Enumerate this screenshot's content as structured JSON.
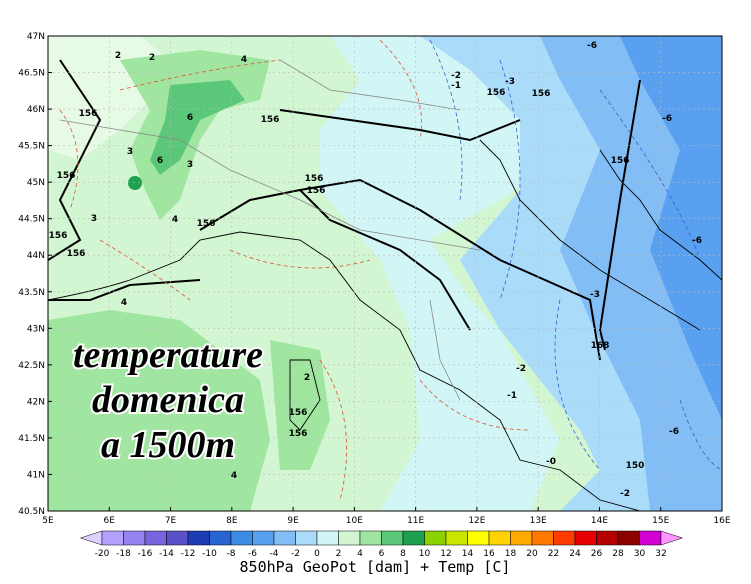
{
  "map": {
    "lat_labels": [
      "47N",
      "46.5N",
      "46N",
      "45.5N",
      "45N",
      "44.5N",
      "44N",
      "43.5N",
      "43N",
      "42.5N",
      "42N",
      "41.5N",
      "41N",
      "40.5N"
    ],
    "lon_labels": [
      "5E",
      "6E",
      "7E",
      "8E",
      "9E",
      "10E",
      "11E",
      "12E",
      "13E",
      "14E",
      "15E",
      "16E"
    ],
    "overlay_text": [
      "temperature",
      "domenica",
      "a 1500m"
    ],
    "contour_labels": [
      "2",
      "2",
      "4",
      "156",
      "156",
      "3",
      "6",
      "6",
      "3",
      "4",
      "156",
      "156",
      "156",
      "3",
      "4",
      "156",
      "156",
      "156",
      "-2",
      "-1",
      "156",
      "-3",
      "156",
      "-6",
      "-6",
      "156",
      "-3",
      "-6",
      "168",
      "-2",
      "-1",
      "-0",
      "150",
      "-6",
      "-2",
      "2",
      "156",
      "156",
      "4"
    ],
    "colorbar": {
      "labels": [
        "-20",
        "-18",
        "-16",
        "-14",
        "-12",
        "-10",
        "-8",
        "-6",
        "-4",
        "-2",
        "0",
        "2",
        "4",
        "6",
        "8",
        "10",
        "12",
        "14",
        "16",
        "18",
        "20",
        "22",
        "24",
        "26",
        "28",
        "30",
        "32"
      ],
      "colors": [
        "#e0d0ff",
        "#b4a0ff",
        "#9682f0",
        "#7864dc",
        "#5a50c8",
        "#1e3cb4",
        "#2864d2",
        "#3c8ce6",
        "#5aa0f0",
        "#82bef5",
        "#aadcfa",
        "#d2f5f5",
        "#d2f5d2",
        "#a0e6a0",
        "#5ac878",
        "#1ea050",
        "#8cd200",
        "#c8e600",
        "#ffff00",
        "#ffd200",
        "#ffaa00",
        "#ff7800",
        "#ff3c00",
        "#e60000",
        "#b40000",
        "#8c0000",
        "#d200d2",
        "#ff96ff"
      ]
    },
    "title": "850hPa GeoPot [dam] + Temp [C]"
  }
}
